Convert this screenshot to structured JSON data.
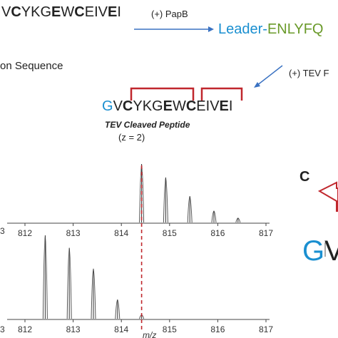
{
  "top": {
    "seq_left_parts": [
      "V",
      "C",
      "YKG",
      "E",
      "W",
      "C",
      "EIV",
      "E",
      "I"
    ],
    "step1_label": "(+) PapB",
    "leader_prefix": "Leader-",
    "leader_suffix": "ENLYFQ",
    "partial_label": "on Sequence",
    "step2_label": "(+) TEV F"
  },
  "peptide": {
    "g": "G",
    "rest_parts": [
      "V",
      "C",
      "YKG",
      "E",
      "W",
      "C",
      "EIV",
      "E",
      "I"
    ],
    "title": "TEV Cleaved Peptide",
    "charge": "(z = 2)",
    "bracket_color": "#c0272d"
  },
  "spectra": {
    "x_ticks": [
      "812",
      "813",
      "814",
      "815",
      "816",
      "817"
    ],
    "left_tick_top": "3",
    "left_tick_bottom": "3",
    "xlabel": "m/z",
    "top_peaks": [
      {
        "mz": 814.42,
        "h": 1.0
      },
      {
        "mz": 814.92,
        "h": 0.77
      },
      {
        "mz": 815.42,
        "h": 0.45
      },
      {
        "mz": 815.92,
        "h": 0.2
      },
      {
        "mz": 816.42,
        "h": 0.08
      }
    ],
    "bottom_peaks": [
      {
        "mz": 812.42,
        "h": 1.0
      },
      {
        "mz": 812.92,
        "h": 0.85
      },
      {
        "mz": 813.42,
        "h": 0.6
      },
      {
        "mz": 813.92,
        "h": 0.23
      },
      {
        "mz": 814.42,
        "h": 0.05
      }
    ],
    "dashed_mz": 814.42,
    "dashed_color": "#c0272d"
  },
  "panel_c": {
    "label": "C",
    "g": "G",
    "v": "V",
    "arrow_color": "#c0272d"
  }
}
